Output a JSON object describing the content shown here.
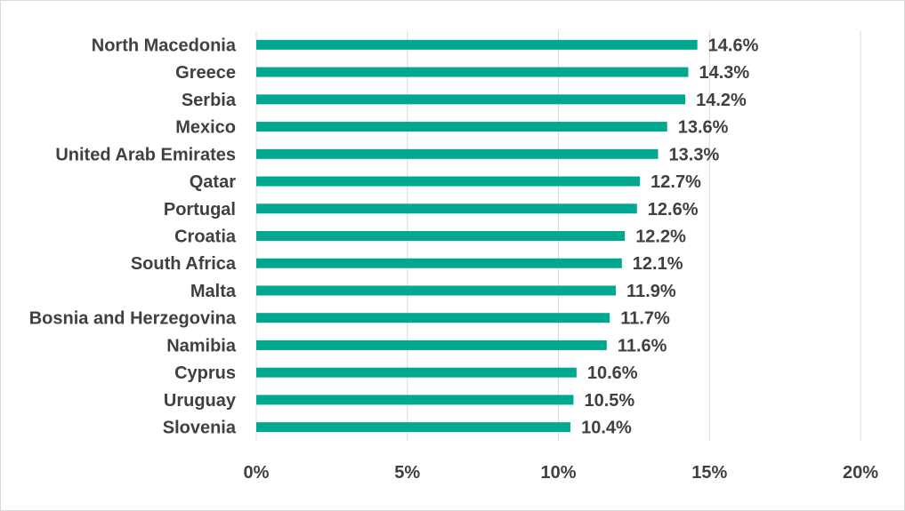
{
  "chart_data": {
    "type": "bar",
    "orientation": "horizontal",
    "categories": [
      "North Macedonia",
      "Greece",
      "Serbia",
      "Mexico",
      "United Arab Emirates",
      "Qatar",
      "Portugal",
      "Croatia",
      "South Africa",
      "Malta",
      "Bosnia and Herzegovina",
      "Namibia",
      "Cyprus",
      "Uruguay",
      "Slovenia"
    ],
    "values": [
      14.6,
      14.3,
      14.2,
      13.6,
      13.3,
      12.7,
      12.6,
      12.2,
      12.1,
      11.9,
      11.7,
      11.6,
      10.6,
      10.5,
      10.4
    ],
    "value_labels": [
      "14.6%",
      "14.3%",
      "14.2%",
      "13.6%",
      "13.3%",
      "12.7%",
      "12.6%",
      "12.2%",
      "12.1%",
      "11.9%",
      "11.7%",
      "11.6%",
      "10.6%",
      "10.5%",
      "10.4%"
    ],
    "xlim": [
      0,
      20
    ],
    "xticks": [
      0,
      5,
      10,
      15,
      20
    ],
    "xtick_labels": [
      "0%",
      "5%",
      "10%",
      "15%",
      "20%"
    ],
    "grid": "vertical",
    "bar_color": "#00a88f",
    "title": "",
    "xlabel": "",
    "ylabel": ""
  }
}
